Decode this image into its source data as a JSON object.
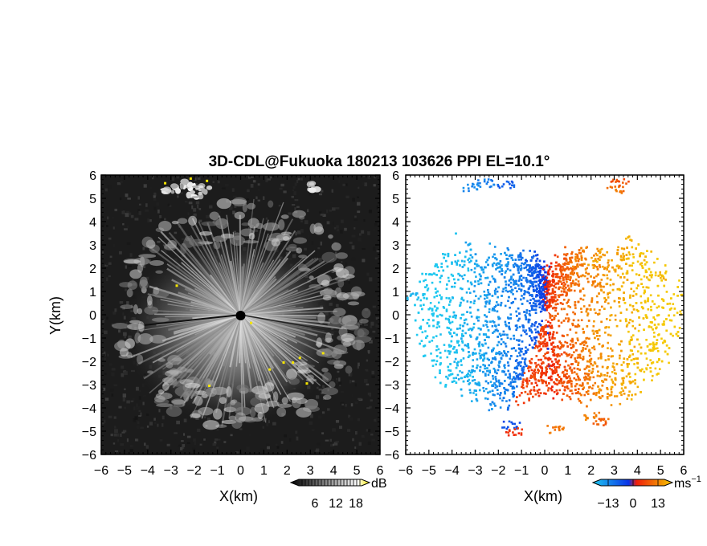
{
  "chart_data": [
    {
      "type": "heatmap",
      "title": "3D-CDL@Fukuoka 180213 103626 PPI EL=10.1°",
      "xlabel": "X(km)",
      "ylabel": "Y(km)",
      "xlim": [
        -6,
        6
      ],
      "ylim": [
        -6,
        6
      ],
      "x_ticks": [
        "−6",
        "−5",
        "−4",
        "−3",
        "−2",
        "−1",
        "0",
        "1",
        "2",
        "3",
        "4",
        "5",
        "6"
      ],
      "y_ticks": [
        "6",
        "5",
        "4",
        "3",
        "2",
        "1",
        "0",
        "−1",
        "−2",
        "−3",
        "−4",
        "−5",
        "−6"
      ],
      "quantity": "SNR",
      "colorbar": {
        "unit": "dB",
        "ticks": [
          "6",
          "12",
          "18"
        ],
        "range": [
          0,
          21
        ],
        "colormap": "grayscale-yellow"
      },
      "background_color": "#1a1a1a"
    },
    {
      "type": "heatmap",
      "xlabel": "X(km)",
      "xlim": [
        -6,
        6
      ],
      "ylim": [
        -6,
        6
      ],
      "x_ticks": [
        "−6",
        "−5",
        "−4",
        "−3",
        "−2",
        "−1",
        "0",
        "1",
        "2",
        "3",
        "4",
        "5",
        "6"
      ],
      "quantity": "Doppler velocity",
      "colorbar": {
        "unit": "ms",
        "unit_exponent": "−1",
        "ticks": [
          "−13",
          "0",
          "13"
        ],
        "range": [
          -16,
          16
        ],
        "colormap": "cyan-blue-red-yellow"
      }
    }
  ],
  "colors": {
    "neg_high": "#1ec8f0",
    "neg_low": "#0a32e6",
    "pos_low": "#f01e0a",
    "pos_high": "#f5c800"
  }
}
